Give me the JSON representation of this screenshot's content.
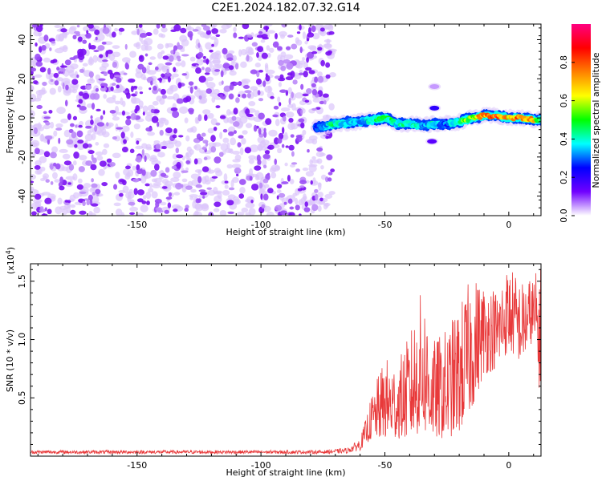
{
  "title": "C2E1.2024.182.07.32.G14",
  "chart_data": [
    {
      "type": "heatmap",
      "xlabel": "Height of straight line (km)",
      "ylabel": "Frequency (Hz)",
      "xlim": [
        -193,
        13
      ],
      "ylim": [
        -50,
        48
      ],
      "xticks": [
        -150,
        -100,
        -50,
        0
      ],
      "yticks": [
        -40,
        -20,
        0,
        20,
        40
      ],
      "colorbar": {
        "label": "Normalized spectral amplitude",
        "range": [
          0,
          1
        ],
        "ticks": [
          "0.0",
          "0.2",
          "0.4",
          "0.6",
          "0.8"
        ],
        "colors": [
          "#ffffff",
          "#7000ff",
          "#0000ff",
          "#00ffff",
          "#00ff00",
          "#ffff00",
          "#ff8000",
          "#ff0000",
          "#ff0080"
        ]
      },
      "noise_region": {
        "x_from": -193,
        "x_to": -71,
        "amplitude_range": [
          0.05,
          0.2
        ]
      },
      "signal_ridge": {
        "x": [
          -78,
          -70,
          -60,
          -50,
          -45,
          -40,
          -35,
          -30,
          -25,
          -20,
          -15,
          -10,
          -5,
          0,
          5,
          10,
          13
        ],
        "frequency_hz": [
          -5,
          -3,
          -2,
          0,
          -3,
          -3,
          -4,
          -3,
          -3,
          -2,
          0,
          1,
          1,
          0,
          0,
          -1,
          -1
        ],
        "peak_amplitude": [
          0.3,
          0.45,
          0.35,
          0.5,
          0.4,
          0.45,
          0.35,
          0.4,
          0.3,
          0.5,
          0.6,
          0.8,
          0.9,
          0.75,
          0.85,
          0.8,
          0.5
        ]
      },
      "isolated_patches": [
        {
          "x": -30,
          "frequency_hz": 5,
          "amplitude": 0.2
        },
        {
          "x": -30,
          "frequency_hz": 16,
          "amplitude": 0.05
        },
        {
          "x": -31,
          "frequency_hz": -12,
          "amplitude": 0.15
        }
      ]
    },
    {
      "type": "line",
      "xlabel": "Height of straight line (km)",
      "ylabel": "SNR (10 * v/v)",
      "y_multiplier": "(x10",
      "y_multiplier_exp": "4",
      "y_multiplier_close": ")",
      "xlim": [
        -193,
        13
      ],
      "ylim": [
        0,
        16500
      ],
      "xticks": [
        -150,
        -100,
        -50,
        0
      ],
      "yticks": [
        5000,
        10000,
        15000
      ],
      "ytick_labels": [
        "0.5",
        "1.0",
        "1.5"
      ],
      "series": [
        {
          "color": "#e8393a",
          "envelope_x": [
            -193,
            -75,
            -65,
            -60,
            -58,
            -55,
            -50,
            -45,
            -40,
            -35,
            -30,
            -25,
            -20,
            -15,
            -10,
            -5,
            0,
            5,
            10,
            13
          ],
          "envelope_low": [
            200,
            200,
            250,
            500,
            1000,
            1500,
            1500,
            1500,
            1500,
            2000,
            1500,
            1500,
            2000,
            4000,
            7000,
            7500,
            9000,
            8000,
            10000,
            4500
          ],
          "envelope_high": [
            500,
            500,
            700,
            1500,
            3000,
            5500,
            8500,
            8000,
            10500,
            14500,
            10000,
            11000,
            13000,
            15500,
            15000,
            14500,
            16500,
            15000,
            15500,
            16500
          ]
        }
      ]
    }
  ]
}
